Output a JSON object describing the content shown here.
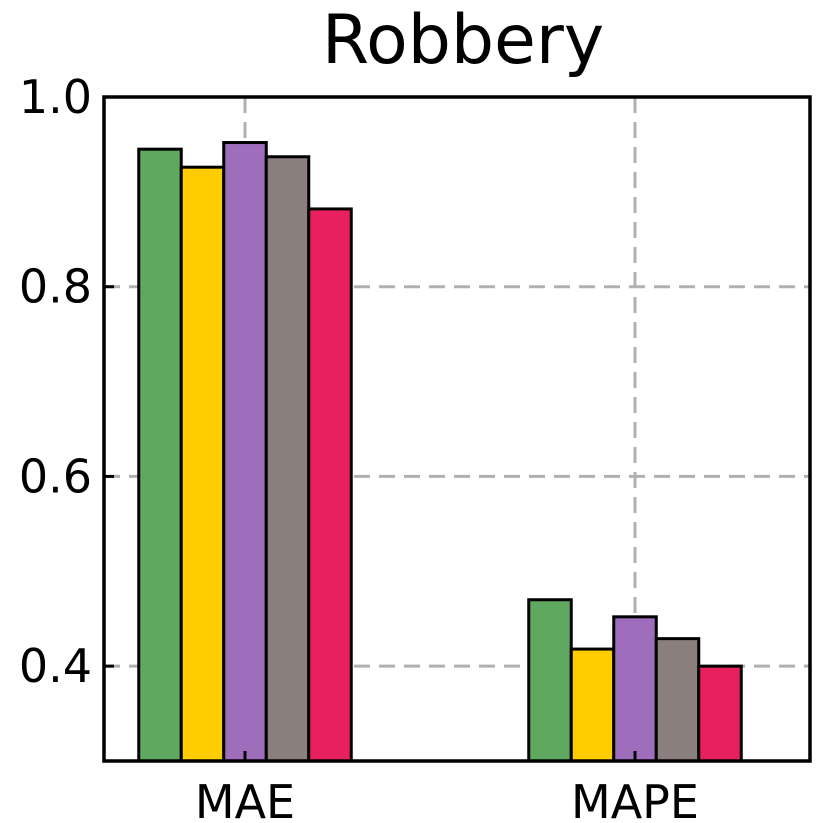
{
  "chart_data": {
    "type": "bar",
    "title": "Robbery",
    "xlabel": "",
    "ylabel": "",
    "categories": [
      "MAE",
      "MAPE"
    ],
    "ylim": [
      0.3,
      1.0
    ],
    "yticks": [
      0.4,
      0.6,
      0.8,
      1.0
    ],
    "ytick_labels": [
      "0.4",
      "0.6",
      "0.8",
      "1.0"
    ],
    "grid": true,
    "legend": "none",
    "series": [
      {
        "color": "#5ea95f",
        "values": [
          0.945,
          0.47
        ]
      },
      {
        "color": "#ffcc00",
        "values": [
          0.926,
          0.418
        ]
      },
      {
        "color": "#9e6ebd",
        "values": [
          0.952,
          0.452
        ]
      },
      {
        "color": "#8a7f7c",
        "values": [
          0.937,
          0.429
        ]
      },
      {
        "color": "#e8205f",
        "values": [
          0.882,
          0.4
        ]
      }
    ]
  }
}
